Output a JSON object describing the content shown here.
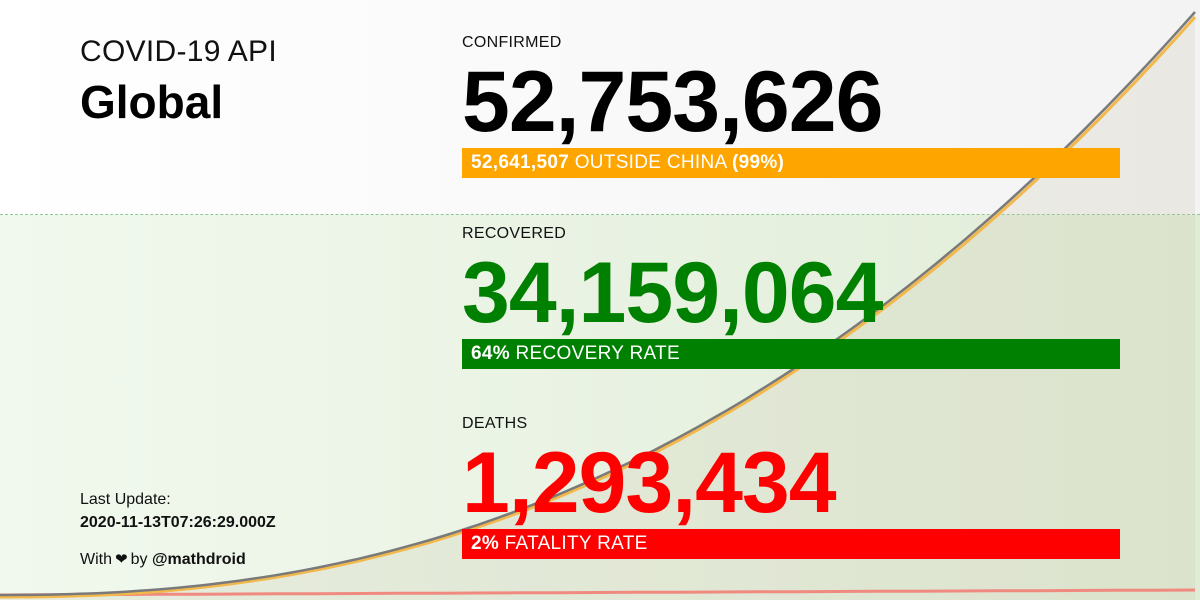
{
  "brand": {
    "name": "COVID-19 API",
    "region": "Global"
  },
  "confirmed": {
    "label": "CONFIRMED",
    "value": "52,753,626",
    "bar_value": "52,641,507",
    "bar_text": "OUTSIDE CHINA",
    "bar_percent": "(99%)",
    "color": "#000000",
    "bar_color": "#ffa500"
  },
  "recovered": {
    "label": "RECOVERED",
    "value": "34,159,064",
    "bar_percent": "64%",
    "bar_text": "RECOVERY RATE",
    "color": "#008000",
    "bar_color": "#008000"
  },
  "deaths": {
    "label": "DEATHS",
    "value": "1,293,434",
    "bar_percent": "2%",
    "bar_text": "FATALITY RATE",
    "color": "#ff0000",
    "bar_color": "#ff0000"
  },
  "footer": {
    "last_update_label": "Last Update:",
    "last_update_value": "2020-11-13T07:26:29.000Z",
    "credit_prefix": "With",
    "heart_icon": "heart-icon",
    "credit_by": "by",
    "credit_handle": "@mathdroid"
  },
  "colors": {
    "trend_confirmed": "#7a7a7a",
    "trend_confirmed_outside": "#f2b84b",
    "trend_deaths": "#f08a80"
  }
}
